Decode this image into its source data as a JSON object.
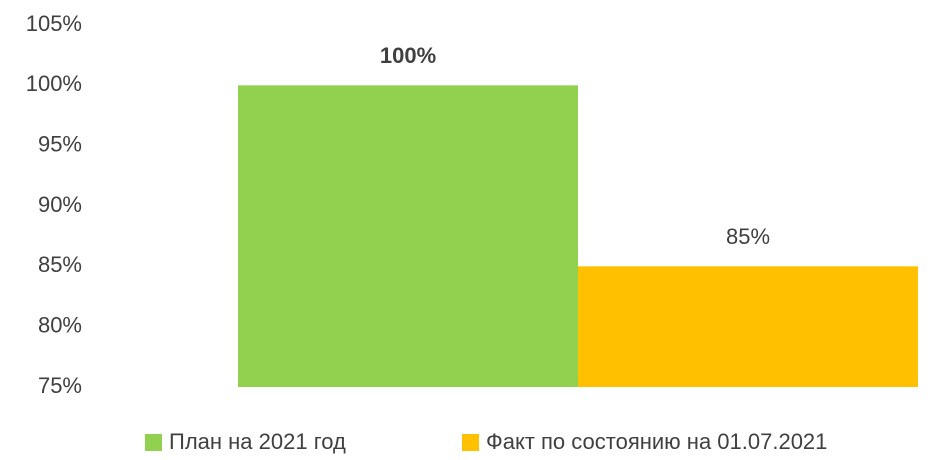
{
  "chart_data": {
    "type": "bar",
    "categories": [
      null
    ],
    "series": [
      {
        "name": "План на 2021 год",
        "color": "#92d050",
        "values": [
          100
        ],
        "value_labels": [
          "100%"
        ]
      },
      {
        "name": "Факт по состоянию на 01.07.2021",
        "color": "#ffc000",
        "values": [
          85
        ],
        "value_labels": [
          "85%"
        ]
      }
    ],
    "ylim": [
      75,
      105
    ],
    "yticks": [
      {
        "value": 75,
        "label": "75%"
      },
      {
        "value": 80,
        "label": "80%"
      },
      {
        "value": 85,
        "label": "85%"
      },
      {
        "value": 90,
        "label": "90%"
      },
      {
        "value": 95,
        "label": "95%"
      },
      {
        "value": 100,
        "label": "100%"
      },
      {
        "value": 105,
        "label": "105%"
      }
    ],
    "grid": false,
    "legend": "bottom"
  }
}
